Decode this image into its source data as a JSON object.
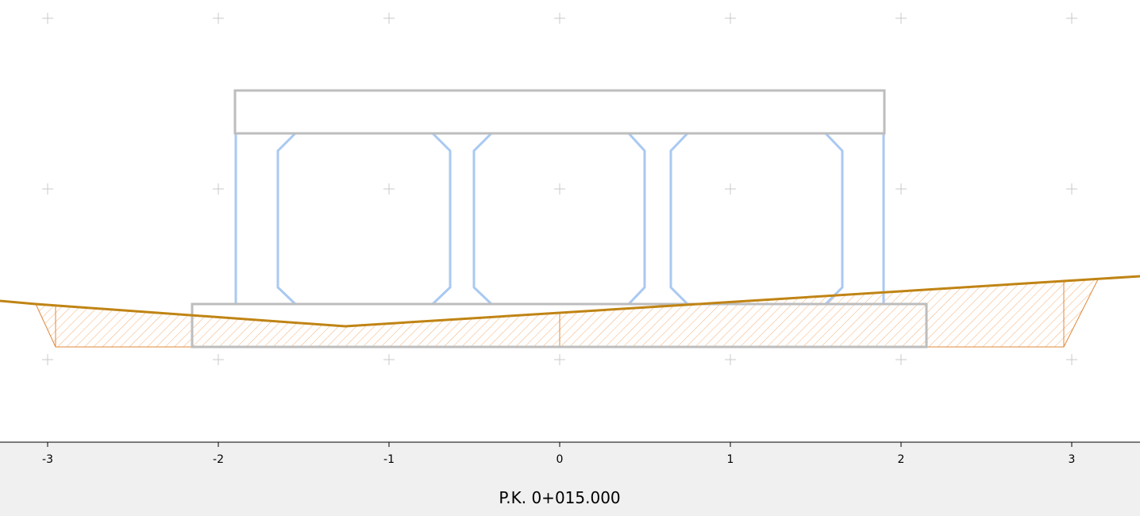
{
  "axis": {
    "ticks": [
      -3,
      -2,
      -1,
      0,
      1,
      2,
      3
    ]
  },
  "footer": {
    "label": "P.K. 0+015.000"
  }
}
